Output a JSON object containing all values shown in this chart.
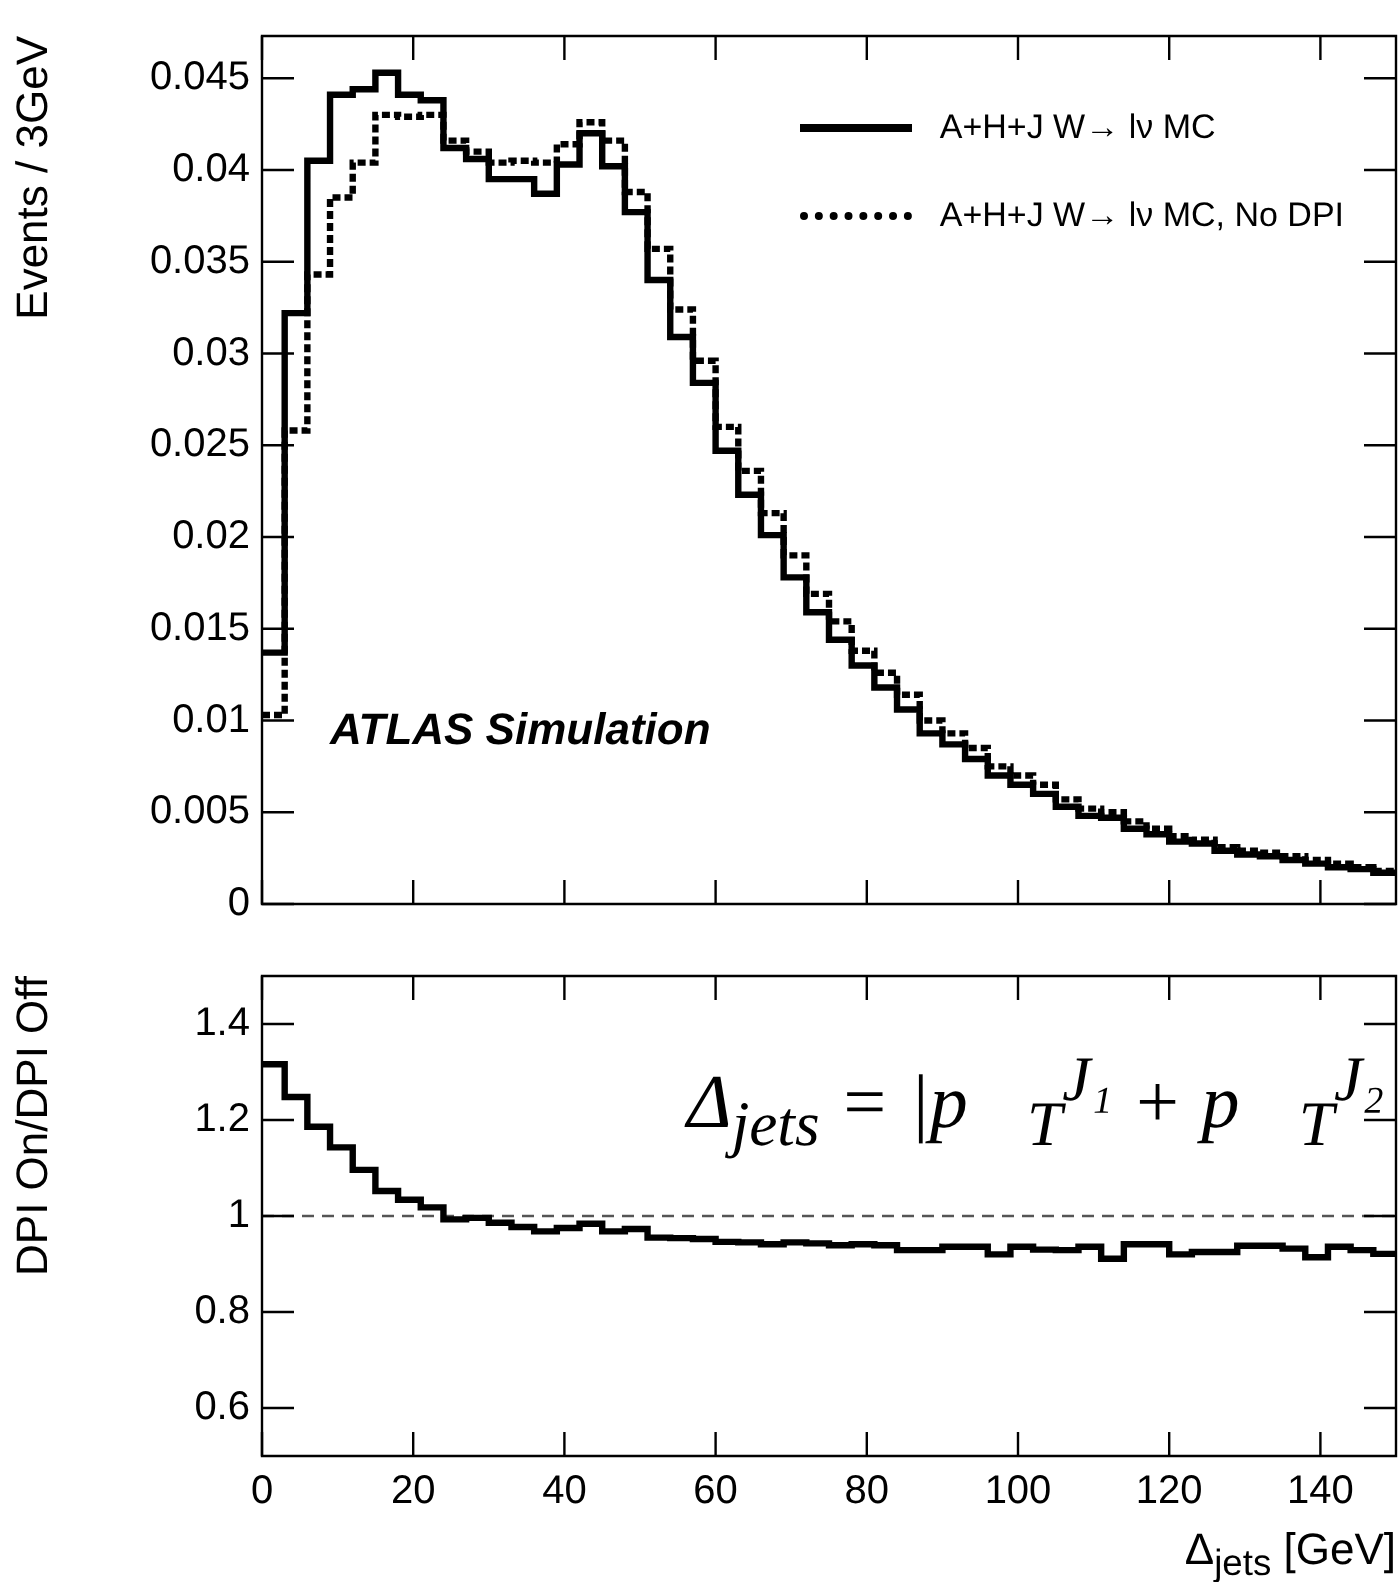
{
  "chart_data": [
    {
      "type": "histogram",
      "ylabel": "Events / 3GeV",
      "legend": "top right",
      "tick_labels": "y",
      "xlim": [
        0,
        150
      ],
      "xticks": [
        0,
        20,
        40,
        60,
        80,
        100,
        120,
        140
      ],
      "ylim": [
        0,
        0.0473
      ],
      "yticks": [
        0,
        0.005,
        0.01,
        0.015,
        0.02,
        0.025,
        0.03,
        0.035,
        0.04,
        0.045
      ],
      "bins": [
        0,
        3,
        6,
        9,
        12,
        15,
        18,
        21,
        24,
        27,
        30,
        33,
        36,
        39,
        42,
        45,
        48,
        51,
        54,
        57,
        60,
        63,
        66,
        69,
        72,
        75,
        78,
        81,
        84,
        87,
        90,
        93,
        96,
        99,
        102,
        105,
        108,
        111,
        114,
        117,
        120,
        123,
        126,
        129,
        132,
        135,
        138,
        141,
        144,
        147,
        150
      ],
      "annotations": [
        "ATLAS Simulation"
      ],
      "series": [
        {
          "name": "A+H+J W→ lν MC",
          "color": "#000000",
          "line_style": "solid",
          "values": [
            0.0137,
            0.0322,
            0.0405,
            0.0441,
            0.0444,
            0.0453,
            0.0441,
            0.0438,
            0.0412,
            0.0406,
            0.0395,
            0.0395,
            0.0387,
            0.0403,
            0.042,
            0.0402,
            0.0377,
            0.034,
            0.0309,
            0.0284,
            0.0247,
            0.0223,
            0.0201,
            0.0178,
            0.0159,
            0.0144,
            0.013,
            0.0118,
            0.0106,
            0.0093,
            0.0087,
            0.0079,
            0.007,
            0.0065,
            0.006,
            0.0053,
            0.0048,
            0.0047,
            0.0041,
            0.0038,
            0.0034,
            0.0033,
            0.0029,
            0.0027,
            0.0026,
            0.0024,
            0.0022,
            0.002,
            0.0019,
            0.0017
          ]
        },
        {
          "name": "A+H+J W→ lν MC, No DPI",
          "color": "#000000",
          "line_style": "dotted",
          "values": [
            0.0103,
            0.0258,
            0.0343,
            0.0385,
            0.0404,
            0.043,
            0.0429,
            0.043,
            0.0416,
            0.041,
            0.0404,
            0.0405,
            0.0404,
            0.0414,
            0.0426,
            0.0416,
            0.0388,
            0.0357,
            0.0324,
            0.0296,
            0.026,
            0.0236,
            0.0213,
            0.019,
            0.0169,
            0.0154,
            0.0138,
            0.0126,
            0.0114,
            0.01,
            0.0093,
            0.0085,
            0.0075,
            0.007,
            0.0065,
            0.0057,
            0.0052,
            0.005,
            0.0045,
            0.0041,
            0.0037,
            0.0035,
            0.0031,
            0.0029,
            0.0028,
            0.0026,
            0.0024,
            0.0022,
            0.002,
            0.0018
          ]
        }
      ]
    },
    {
      "type": "histogram",
      "xlabel": "Δ$_{jets}$ [GeV]",
      "ylabel": "DPI On/DPI Off",
      "xlim": [
        0,
        150
      ],
      "xticks": [
        0,
        20,
        40,
        60,
        80,
        100,
        120,
        140
      ],
      "ylim": [
        0.5,
        1.5
      ],
      "yticks": [
        0.6,
        0.8,
        1,
        1.2,
        1.4
      ],
      "bins": [
        0,
        3,
        6,
        9,
        12,
        15,
        18,
        21,
        24,
        27,
        30,
        33,
        36,
        39,
        42,
        45,
        48,
        51,
        54,
        57,
        60,
        63,
        66,
        69,
        72,
        75,
        78,
        81,
        84,
        87,
        90,
        93,
        96,
        99,
        102,
        105,
        108,
        111,
        114,
        117,
        120,
        123,
        126,
        129,
        132,
        135,
        138,
        141,
        144,
        147,
        150
      ],
      "color": "#000000",
      "values": [
        1.316,
        1.248,
        1.186,
        1.143,
        1.096,
        1.052,
        1.034,
        1.018,
        0.993,
        0.996,
        0.986,
        0.977,
        0.968,
        0.975,
        0.984,
        0.968,
        0.973,
        0.955,
        0.954,
        0.952,
        0.946,
        0.945,
        0.941,
        0.945,
        0.943,
        0.939,
        0.941,
        0.939,
        0.929,
        0.929,
        0.936,
        0.936,
        0.92,
        0.936,
        0.93,
        0.929,
        0.936,
        0.911,
        0.941,
        0.941,
        0.92,
        0.925,
        0.925,
        0.938,
        0.938,
        0.932,
        0.914,
        0.936,
        0.929,
        0.921
      ],
      "ref_lines": [
        {
          "axis": "y",
          "value": 1,
          "color": "#555555",
          "line_style": "dashed"
        }
      ],
      "annotations": [
        "Δ$_{jets}$ = |p⃗$_{T}$$^{J₁}$ + p⃗$_{T}$$^{J₂}$"
      ]
    }
  ]
}
